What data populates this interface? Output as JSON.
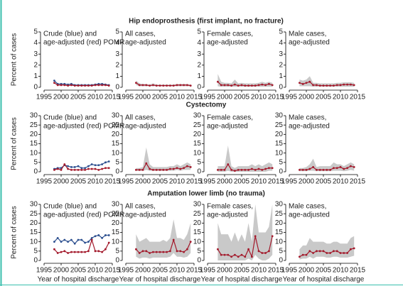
{
  "chart_data": [
    {
      "type": "line",
      "title": "Hip endoprosthesis (first implant, no fracture)",
      "label": [
        "Crude (blue) and",
        "age-adjusted (red) POMR"
      ],
      "ylabel": "Percent of cases",
      "x": [
        1998,
        1999,
        2000,
        2001,
        2002,
        2003,
        2004,
        2005,
        2006,
        2007,
        2008,
        2009,
        2010,
        2011,
        2012,
        2013,
        2014
      ],
      "series": [
        {
          "color": "#2c4f8f",
          "values": [
            0.6,
            0.3,
            0.3,
            0.3,
            0.25,
            0.3,
            0.2,
            0.2,
            0.2,
            0.2,
            0.2,
            0.2,
            0.25,
            0.3,
            0.3,
            0.25,
            0.2
          ]
        },
        {
          "color": "#a3192b",
          "values": [
            0.4,
            0.2,
            0.2,
            0.2,
            0.15,
            0.2,
            0.15,
            0.15,
            0.15,
            0.15,
            0.15,
            0.15,
            0.2,
            0.2,
            0.2,
            0.2,
            0.15
          ]
        }
      ],
      "xlim": [
        1995,
        2015
      ],
      "xticks": [
        1995,
        2000,
        2005,
        2010,
        2015
      ],
      "ylim": [
        0,
        5
      ],
      "yticks": [
        0,
        1,
        2,
        3,
        4,
        5
      ]
    },
    {
      "type": "line",
      "label": [
        "All cases,",
        "age-adjusted"
      ],
      "x": [
        1998,
        1999,
        2000,
        2001,
        2002,
        2003,
        2004,
        2005,
        2006,
        2007,
        2008,
        2009,
        2010,
        2011,
        2012,
        2013,
        2014
      ],
      "band": {
        "color": "#c9c9c9",
        "lower": [
          0.2,
          0.1,
          0.1,
          0.1,
          0.1,
          0.1,
          0.1,
          0.1,
          0.1,
          0.1,
          0.1,
          0.1,
          0.1,
          0.1,
          0.1,
          0.1,
          0.1
        ],
        "upper": [
          0.6,
          0.35,
          0.3,
          0.3,
          0.25,
          0.35,
          0.25,
          0.25,
          0.25,
          0.25,
          0.25,
          0.25,
          0.3,
          0.3,
          0.3,
          0.3,
          0.25
        ]
      },
      "series": [
        {
          "color": "#a3192b",
          "values": [
            0.4,
            0.2,
            0.2,
            0.2,
            0.15,
            0.2,
            0.15,
            0.15,
            0.15,
            0.15,
            0.15,
            0.15,
            0.2,
            0.2,
            0.2,
            0.2,
            0.15
          ]
        }
      ],
      "xlim": [
        1995,
        2015
      ],
      "xticks": [
        1995,
        2000,
        2005,
        2010,
        2015
      ],
      "ylim": [
        0,
        5
      ],
      "yticks": [
        0,
        1,
        2,
        3,
        4,
        5
      ]
    },
    {
      "type": "line",
      "label": [
        "Female cases,",
        "age-adjusted"
      ],
      "x": [
        1998,
        1999,
        2000,
        2001,
        2002,
        2003,
        2004,
        2005,
        2006,
        2007,
        2008,
        2009,
        2010,
        2011,
        2012,
        2013,
        2014
      ],
      "band": {
        "color": "#c9c9c9",
        "lower": [
          0.1,
          0.05,
          0.05,
          0.05,
          0.05,
          0.05,
          0.05,
          0.05,
          0.05,
          0.05,
          0.05,
          0.05,
          0.05,
          0.05,
          0.05,
          0.05,
          0.05
        ],
        "upper": [
          1.2,
          0.5,
          0.4,
          0.4,
          0.35,
          0.7,
          0.35,
          0.4,
          0.35,
          0.35,
          0.35,
          0.35,
          0.4,
          0.5,
          0.4,
          0.5,
          0.4
        ]
      },
      "series": [
        {
          "color": "#a3192b",
          "values": [
            0.5,
            0.2,
            0.2,
            0.2,
            0.15,
            0.25,
            0.15,
            0.2,
            0.15,
            0.15,
            0.15,
            0.15,
            0.2,
            0.25,
            0.2,
            0.3,
            0.2
          ]
        }
      ],
      "xlim": [
        1995,
        2015
      ],
      "xticks": [
        1995,
        2000,
        2005,
        2010,
        2015
      ],
      "ylim": [
        0,
        5
      ],
      "yticks": [
        0,
        1,
        2,
        3,
        4,
        5
      ]
    },
    {
      "type": "line",
      "label": [
        "Male cases,",
        "age-adjusted"
      ],
      "x": [
        1998,
        1999,
        2000,
        2001,
        2002,
        2003,
        2004,
        2005,
        2006,
        2007,
        2008,
        2009,
        2010,
        2011,
        2012,
        2013,
        2014
      ],
      "band": {
        "color": "#c9c9c9",
        "lower": [
          0.1,
          0.1,
          0.1,
          0.1,
          0.05,
          0.05,
          0.05,
          0.05,
          0.05,
          0.05,
          0.05,
          0.05,
          0.05,
          0.05,
          0.05,
          0.05,
          0.05
        ],
        "upper": [
          0.7,
          0.6,
          0.7,
          1.0,
          0.4,
          0.4,
          0.35,
          0.35,
          0.35,
          0.35,
          0.35,
          0.4,
          0.4,
          0.45,
          0.45,
          0.45,
          0.4
        ]
      },
      "series": [
        {
          "color": "#a3192b",
          "values": [
            0.4,
            0.3,
            0.4,
            0.5,
            0.2,
            0.2,
            0.15,
            0.15,
            0.15,
            0.15,
            0.15,
            0.2,
            0.2,
            0.25,
            0.25,
            0.25,
            0.2
          ]
        }
      ],
      "xlim": [
        1995,
        2015
      ],
      "xticks": [
        1995,
        2000,
        2005,
        2010,
        2015
      ],
      "ylim": [
        0,
        5
      ],
      "yticks": [
        0,
        1,
        2,
        3,
        4,
        5
      ]
    },
    {
      "type": "line",
      "title": "Cystectomy",
      "label": [
        "Crude (blue) and",
        "age-adjusted (red) POMR"
      ],
      "ylabel": "Percent of cases",
      "x": [
        1998,
        1999,
        2000,
        2001,
        2002,
        2003,
        2004,
        2005,
        2006,
        2007,
        2008,
        2009,
        2010,
        2011,
        2012,
        2013,
        2014
      ],
      "series": [
        {
          "color": "#2c4f8f",
          "values": [
            1.5,
            2,
            2,
            3.5,
            3,
            2.5,
            2.5,
            3,
            2,
            2,
            3,
            4,
            3.5,
            3.5,
            4,
            5,
            5.5
          ]
        },
        {
          "color": "#a3192b",
          "values": [
            1,
            1.5,
            1,
            4,
            1.5,
            1,
            1,
            1,
            1,
            1,
            1.5,
            1.5,
            1.5,
            1,
            1.5,
            2,
            2
          ]
        }
      ],
      "xlim": [
        1995,
        2015
      ],
      "xticks": [
        1995,
        2000,
        2005,
        2010,
        2015
      ],
      "ylim": [
        0,
        30
      ],
      "yticks": [
        0,
        5,
        10,
        15,
        20,
        25,
        30
      ]
    },
    {
      "type": "line",
      "label": [
        "All cases,",
        "age-adjusted"
      ],
      "x": [
        1998,
        1999,
        2000,
        2001,
        2002,
        2003,
        2004,
        2005,
        2006,
        2007,
        2008,
        2009,
        2010,
        2011,
        2012,
        2013,
        2014
      ],
      "band": {
        "color": "#c9c9c9",
        "lower": [
          0.5,
          0.5,
          0.5,
          1,
          0.5,
          0.5,
          0.5,
          0.5,
          0.5,
          0.5,
          0.5,
          0.5,
          1,
          0.5,
          1,
          1,
          1
        ],
        "upper": [
          2,
          2,
          2.5,
          13,
          4,
          2.5,
          2.5,
          2.5,
          2.5,
          2.5,
          3,
          3,
          4,
          3,
          4,
          5,
          4
        ]
      },
      "series": [
        {
          "color": "#a3192b",
          "values": [
            1,
            1,
            1,
            4.5,
            1.5,
            1,
            1,
            1,
            1,
            1,
            1.5,
            1.5,
            2,
            1.5,
            2,
            3,
            2.5
          ]
        }
      ],
      "xlim": [
        1995,
        2015
      ],
      "xticks": [
        1995,
        2000,
        2005,
        2010,
        2015
      ],
      "ylim": [
        0,
        30
      ],
      "yticks": [
        0,
        5,
        10,
        15,
        20,
        25,
        30
      ]
    },
    {
      "type": "line",
      "label": [
        "Female cases,",
        "age-adjusted"
      ],
      "x": [
        1998,
        1999,
        2000,
        2001,
        2002,
        2003,
        2004,
        2005,
        2006,
        2007,
        2008,
        2009,
        2010,
        2011,
        2012,
        2013,
        2014
      ],
      "band": {
        "color": "#c9c9c9",
        "lower": [
          0,
          0,
          0,
          0.5,
          0,
          0,
          0,
          0,
          0,
          0,
          0,
          0,
          0,
          0,
          0,
          0.5,
          0.5
        ],
        "upper": [
          3,
          3,
          3,
          14,
          3,
          2,
          3,
          3,
          3,
          3,
          4,
          3,
          4,
          3,
          4,
          5,
          4
        ]
      },
      "series": [
        {
          "color": "#a3192b",
          "values": [
            1,
            1,
            1,
            4,
            1,
            0.5,
            1,
            1,
            1,
            1,
            1.5,
            1,
            1.5,
            1,
            1.5,
            2,
            2
          ]
        }
      ],
      "xlim": [
        1995,
        2015
      ],
      "xticks": [
        1995,
        2000,
        2005,
        2010,
        2015
      ],
      "ylim": [
        0,
        30
      ],
      "yticks": [
        0,
        5,
        10,
        15,
        20,
        25,
        30
      ]
    },
    {
      "type": "line",
      "label": [
        "Male cases,",
        "age-adjusted"
      ],
      "x": [
        1998,
        1999,
        2000,
        2001,
        2002,
        2003,
        2004,
        2005,
        2006,
        2007,
        2008,
        2009,
        2010,
        2011,
        2012,
        2013,
        2014
      ],
      "band": {
        "color": "#c9c9c9",
        "lower": [
          0.3,
          0.3,
          0.3,
          0.5,
          0.5,
          0.3,
          0.3,
          0.3,
          0.3,
          0.3,
          0.5,
          0.5,
          0.5,
          0.3,
          0.5,
          1,
          0.5
        ],
        "upper": [
          2,
          2,
          2.5,
          4,
          7,
          2.5,
          3,
          3,
          3,
          3,
          5,
          4,
          4,
          3,
          4,
          5,
          4
        ]
      },
      "series": [
        {
          "color": "#a3192b",
          "values": [
            1,
            1,
            1,
            1.5,
            2.5,
            1,
            1,
            1,
            1,
            1,
            2,
            2,
            2.5,
            1.5,
            2,
            3,
            2.5
          ]
        }
      ],
      "xlim": [
        1995,
        2015
      ],
      "xticks": [
        1995,
        2000,
        2005,
        2010,
        2015
      ],
      "ylim": [
        0,
        30
      ],
      "yticks": [
        0,
        5,
        10,
        15,
        20,
        25,
        30
      ]
    },
    {
      "type": "line",
      "title": "Amputation lower limb (no trauma)",
      "label": [
        "Crude (blue) and",
        "age-adjusted (red) POMR"
      ],
      "ylabel": "Percent of cases",
      "xlabel": "Year of hospital discharge",
      "x": [
        1998,
        1999,
        2000,
        2001,
        2002,
        2003,
        2004,
        2005,
        2006,
        2007,
        2008,
        2009,
        2010,
        2011,
        2012,
        2013,
        2014
      ],
      "series": [
        {
          "color": "#2c4f8f",
          "values": [
            10,
            12,
            10,
            11,
            10,
            11,
            9,
            11,
            11,
            9.5,
            10,
            12,
            13,
            13.5,
            12,
            13.5,
            13.5
          ]
        },
        {
          "color": "#a3192b",
          "values": [
            6,
            4,
            4.5,
            5,
            4,
            4.5,
            4.5,
            4.5,
            4.5,
            4.5,
            5,
            11,
            5,
            5,
            4.5,
            6,
            9.5
          ]
        }
      ],
      "xlim": [
        1995,
        2015
      ],
      "xticks": [
        1995,
        2000,
        2005,
        2010,
        2015
      ],
      "ylim": [
        0,
        30
      ],
      "yticks": [
        0,
        5,
        10,
        15,
        20,
        25,
        30
      ]
    },
    {
      "type": "line",
      "label": [
        "All cases,",
        "age-adjusted"
      ],
      "xlabel": "Year of hospital discharge",
      "x": [
        1998,
        1999,
        2000,
        2001,
        2002,
        2003,
        2004,
        2005,
        2006,
        2007,
        2008,
        2009,
        2010,
        2011,
        2012,
        2013,
        2014
      ],
      "band": {
        "color": "#c9c9c9",
        "lower": [
          2,
          1,
          1.5,
          1.5,
          1,
          1.5,
          1.5,
          1.5,
          1.5,
          1.5,
          2,
          4,
          2,
          2,
          1.5,
          2,
          4
        ],
        "upper": [
          14,
          10,
          11,
          12,
          10,
          10,
          10,
          10,
          11,
          10,
          12,
          22,
          12,
          12,
          11,
          14,
          20
        ]
      },
      "series": [
        {
          "color": "#a3192b",
          "values": [
            6,
            4,
            5,
            5,
            4,
            4.5,
            4.5,
            4.5,
            4.5,
            4.5,
            5,
            11,
            5,
            5,
            4.5,
            6,
            10
          ]
        }
      ],
      "xlim": [
        1995,
        2015
      ],
      "xticks": [
        1995,
        2000,
        2005,
        2010,
        2015
      ],
      "ylim": [
        0,
        30
      ],
      "yticks": [
        0,
        5,
        10,
        15,
        20,
        25,
        30
      ]
    },
    {
      "type": "line",
      "label": [
        "Female cases,",
        "age-adjusted"
      ],
      "xlabel": "Year of hospital discharge",
      "x": [
        1998,
        1999,
        2000,
        2001,
        2002,
        2003,
        2004,
        2005,
        2006,
        2007,
        2008,
        2009,
        2010,
        2011,
        2012,
        2013,
        2014
      ],
      "band": {
        "color": "#c9c9c9",
        "lower": [
          0,
          0,
          0,
          0,
          0,
          0,
          0,
          0,
          0,
          1,
          0,
          3,
          1,
          0,
          0,
          1,
          3
        ],
        "upper": [
          20,
          14,
          14,
          14,
          10,
          15,
          10,
          14,
          10,
          20,
          10,
          30,
          15,
          15,
          15,
          18,
          30
        ]
      },
      "series": [
        {
          "color": "#a3192b",
          "values": [
            6,
            3,
            3,
            3,
            2,
            3,
            2,
            3,
            2,
            6,
            2,
            13,
            5,
            4,
            4,
            5,
            13
          ]
        }
      ],
      "xlim": [
        1995,
        2015
      ],
      "xticks": [
        1995,
        2000,
        2005,
        2010,
        2015
      ],
      "ylim": [
        0,
        30
      ],
      "yticks": [
        0,
        5,
        10,
        15,
        20,
        25,
        30
      ]
    },
    {
      "type": "line",
      "label": [
        "Male cases,",
        "age-adjusted"
      ],
      "xlabel": "Year of hospital discharge",
      "x": [
        1998,
        1999,
        2000,
        2001,
        2002,
        2003,
        2004,
        2005,
        2006,
        2007,
        2008,
        2009,
        2010,
        2011,
        2012,
        2013,
        2014
      ],
      "band": {
        "color": "#c9c9c9",
        "lower": [
          0.5,
          1,
          1,
          2,
          1,
          2,
          2,
          2,
          1.5,
          1.5,
          2,
          2,
          1.5,
          1.5,
          1.5,
          2,
          2.5
        ],
        "upper": [
          6,
          8,
          8,
          12,
          10,
          10,
          10,
          10,
          9,
          9,
          10,
          10,
          9,
          9,
          9,
          12,
          13
        ]
      },
      "series": [
        {
          "color": "#a3192b",
          "values": [
            2,
            3,
            3,
            5,
            4,
            5,
            5,
            5,
            4,
            4,
            5,
            5,
            4,
            4,
            4,
            6,
            6.5
          ]
        }
      ],
      "xlim": [
        1995,
        2015
      ],
      "xticks": [
        1995,
        2000,
        2005,
        2010,
        2015
      ],
      "ylim": [
        0,
        30
      ],
      "yticks": [
        0,
        5,
        10,
        15,
        20,
        25,
        30
      ]
    }
  ]
}
